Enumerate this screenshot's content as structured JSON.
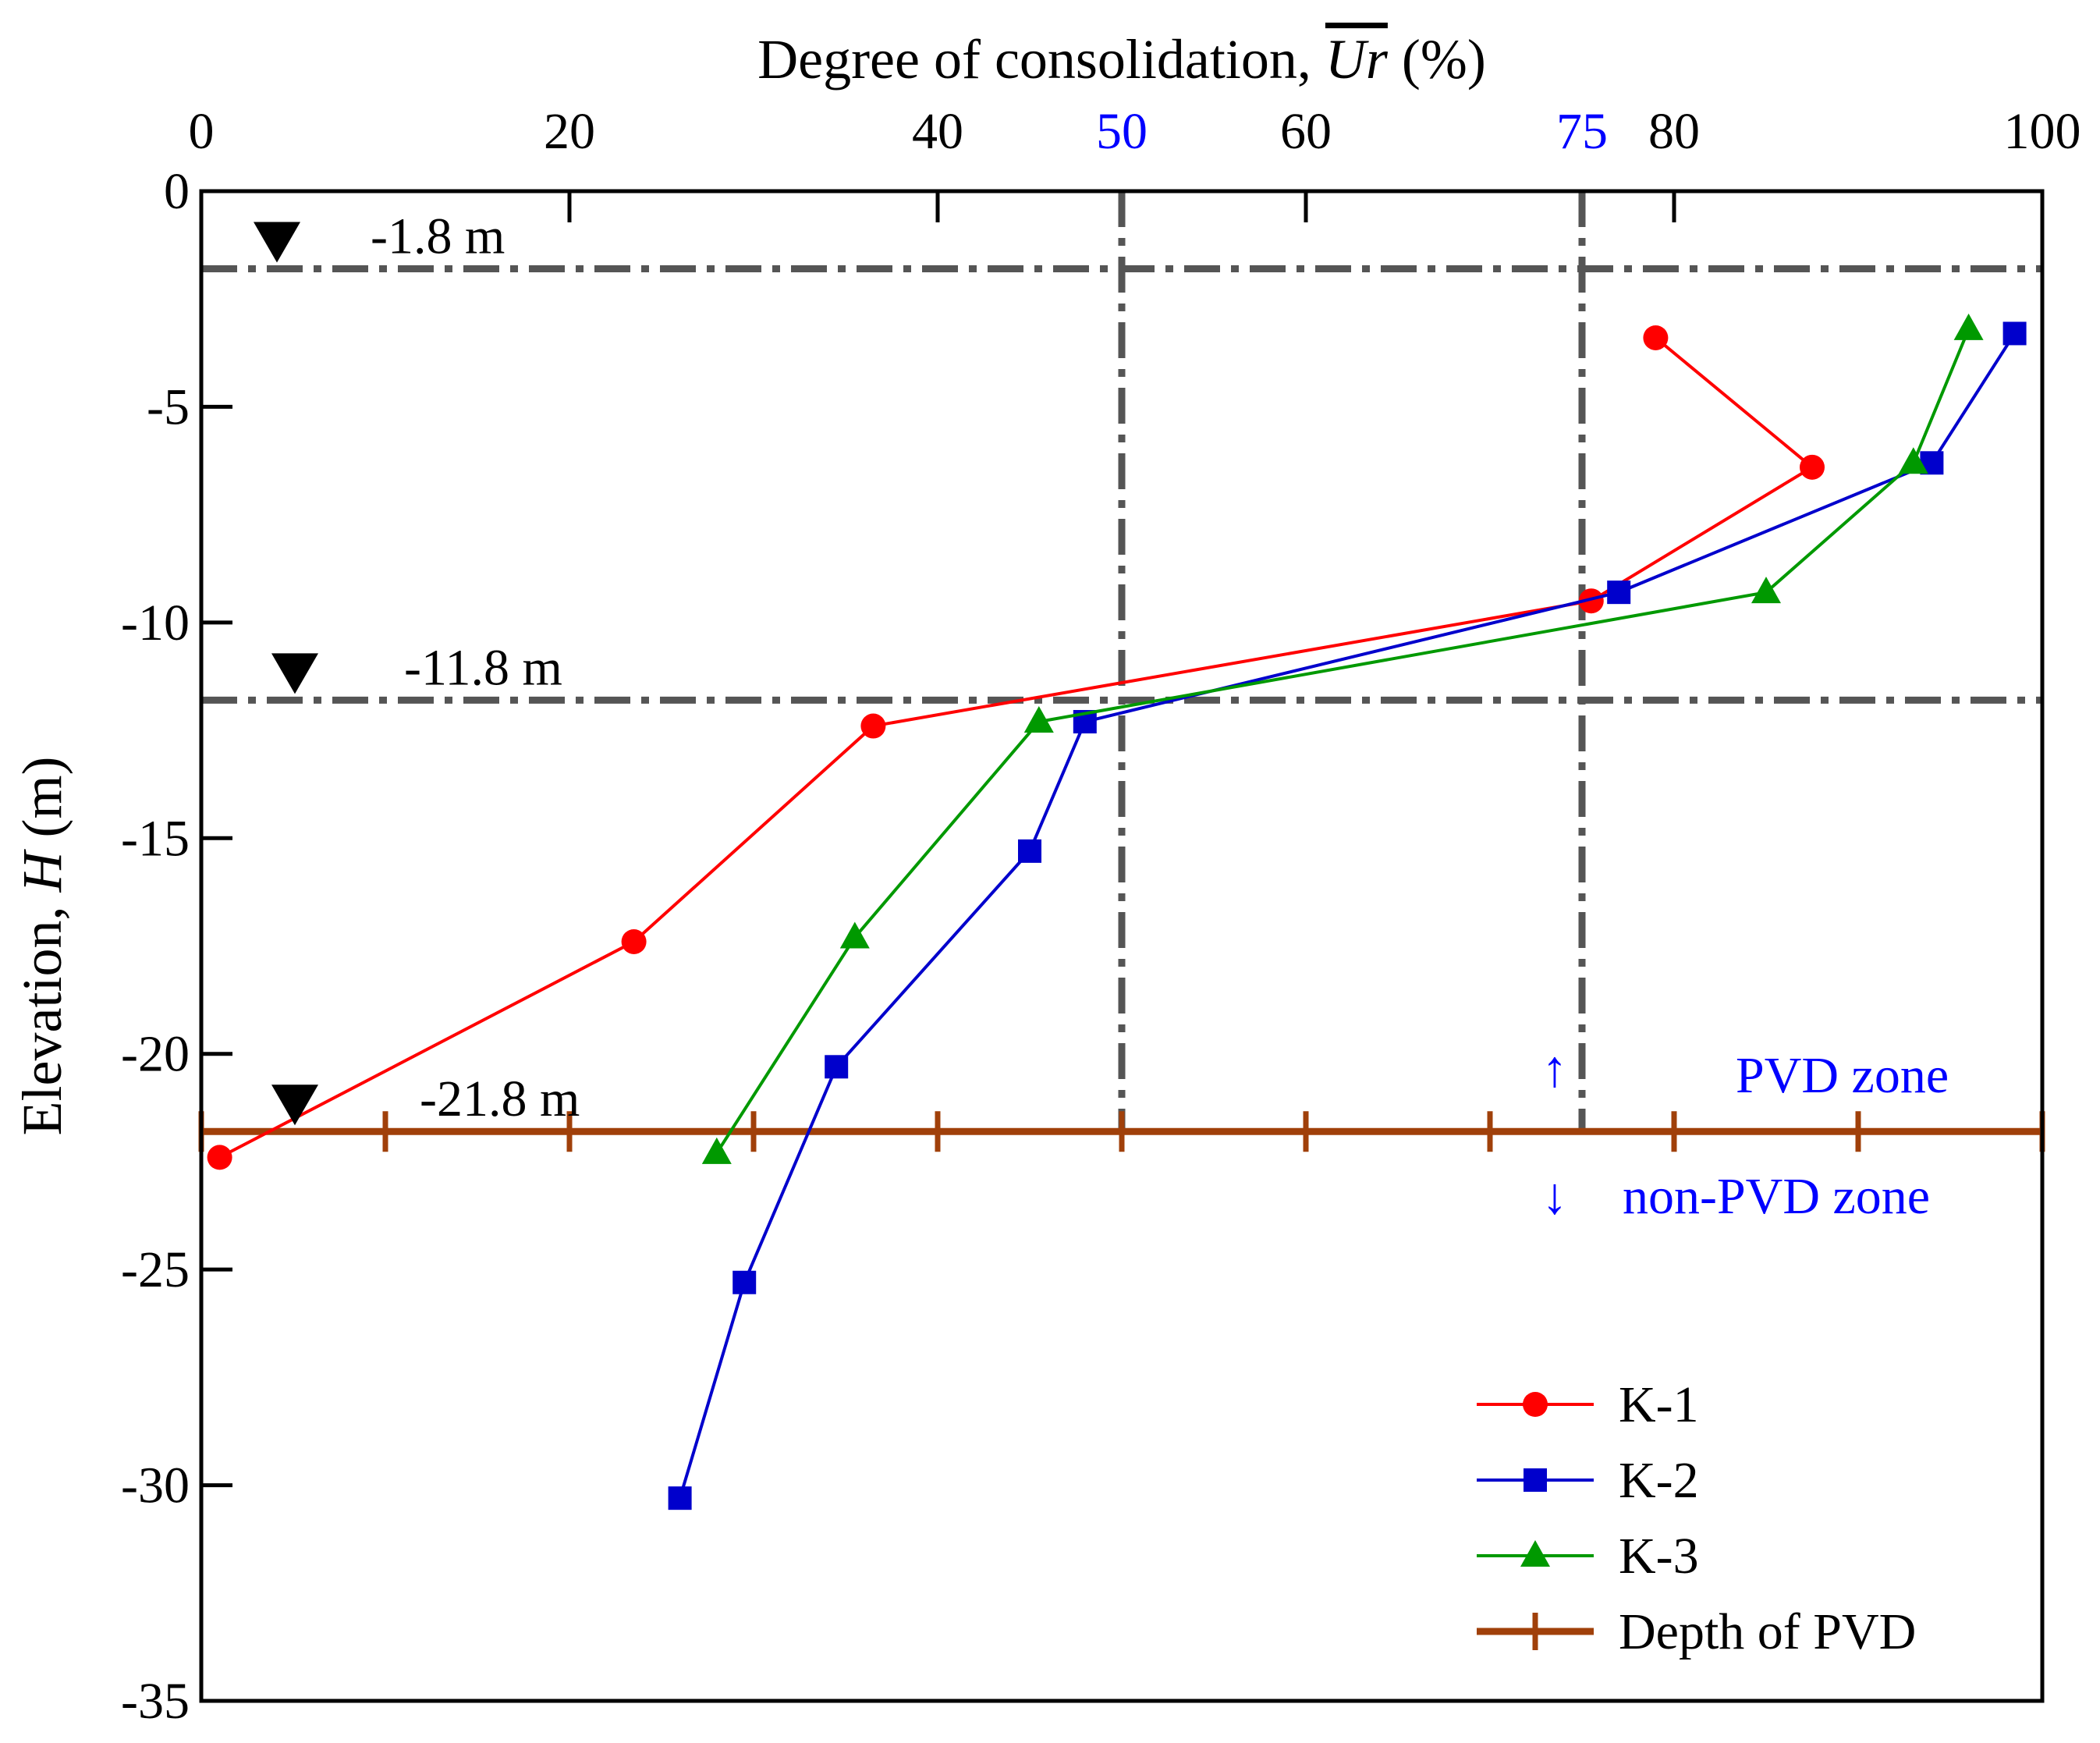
{
  "chart_data": {
    "type": "line",
    "title": "",
    "x_axis": {
      "label_prefix": "Degree of consolidation, ",
      "label_symbol": "Ur",
      "label_suffix": " (%)",
      "position": "top",
      "range": [
        0,
        100
      ],
      "ticks": [
        "0",
        "20",
        "40",
        "60",
        "80",
        "100"
      ],
      "highlight_ticks": [
        "50",
        "75"
      ],
      "highlight_color": "#0000ff"
    },
    "y_axis": {
      "label_prefix": "Elevation, ",
      "label_symbol": "H",
      "label_suffix": " (m)",
      "range": [
        -35,
        0
      ],
      "ticks": [
        "0",
        "-5",
        "-10",
        "-15",
        "-20",
        "-25",
        "-30",
        "-35"
      ]
    },
    "reference_lines": {
      "horizontal": [
        {
          "value": -1.8,
          "label": "-1.8 m"
        },
        {
          "value": -11.8,
          "label": "-11.8 m"
        },
        {
          "value": -21.8,
          "label": "-21.8 m"
        }
      ],
      "vertical": [
        50,
        75
      ],
      "color": "#555555"
    },
    "zone_labels": {
      "upper": "PVD zone",
      "lower": "non-PVD zone",
      "up_arrow": "↑",
      "down_arrow": "↓",
      "color": "#0000ff"
    },
    "series": [
      {
        "name": "K-1",
        "color": "#ff0000",
        "marker": "circle",
        "points": [
          [
            79.0,
            -3.4
          ],
          [
            87.5,
            -6.4
          ],
          [
            75.5,
            -9.5
          ],
          [
            36.5,
            -12.4
          ],
          [
            23.5,
            -17.4
          ],
          [
            1.0,
            -22.4
          ]
        ]
      },
      {
        "name": "K-2",
        "color": "#0000cc",
        "marker": "square",
        "points": [
          [
            98.5,
            -3.3
          ],
          [
            94.0,
            -6.3
          ],
          [
            77.0,
            -9.3
          ],
          [
            48.0,
            -12.3
          ],
          [
            45.0,
            -15.3
          ],
          [
            34.5,
            -20.3
          ],
          [
            29.5,
            -25.3
          ],
          [
            26.0,
            -30.3
          ]
        ]
      },
      {
        "name": "K-3",
        "color": "#009900",
        "marker": "triangle",
        "points": [
          [
            96.0,
            -3.2
          ],
          [
            93.0,
            -6.3
          ],
          [
            85.0,
            -9.3
          ],
          [
            45.5,
            -12.3
          ],
          [
            35.5,
            -17.3
          ],
          [
            28.0,
            -22.3
          ]
        ]
      },
      {
        "name": "Depth of PVD",
        "color": "#a0400a",
        "marker": "plus",
        "points": [
          [
            0,
            -21.8
          ],
          [
            10,
            -21.8
          ],
          [
            20,
            -21.8
          ],
          [
            30,
            -21.8
          ],
          [
            40,
            -21.8
          ],
          [
            50,
            -21.8
          ],
          [
            60,
            -21.8
          ],
          [
            70,
            -21.8
          ],
          [
            80,
            -21.8
          ],
          [
            90,
            -21.8
          ],
          [
            100,
            -21.8
          ]
        ]
      }
    ],
    "legend": {
      "placement": "bottom-right"
    }
  }
}
